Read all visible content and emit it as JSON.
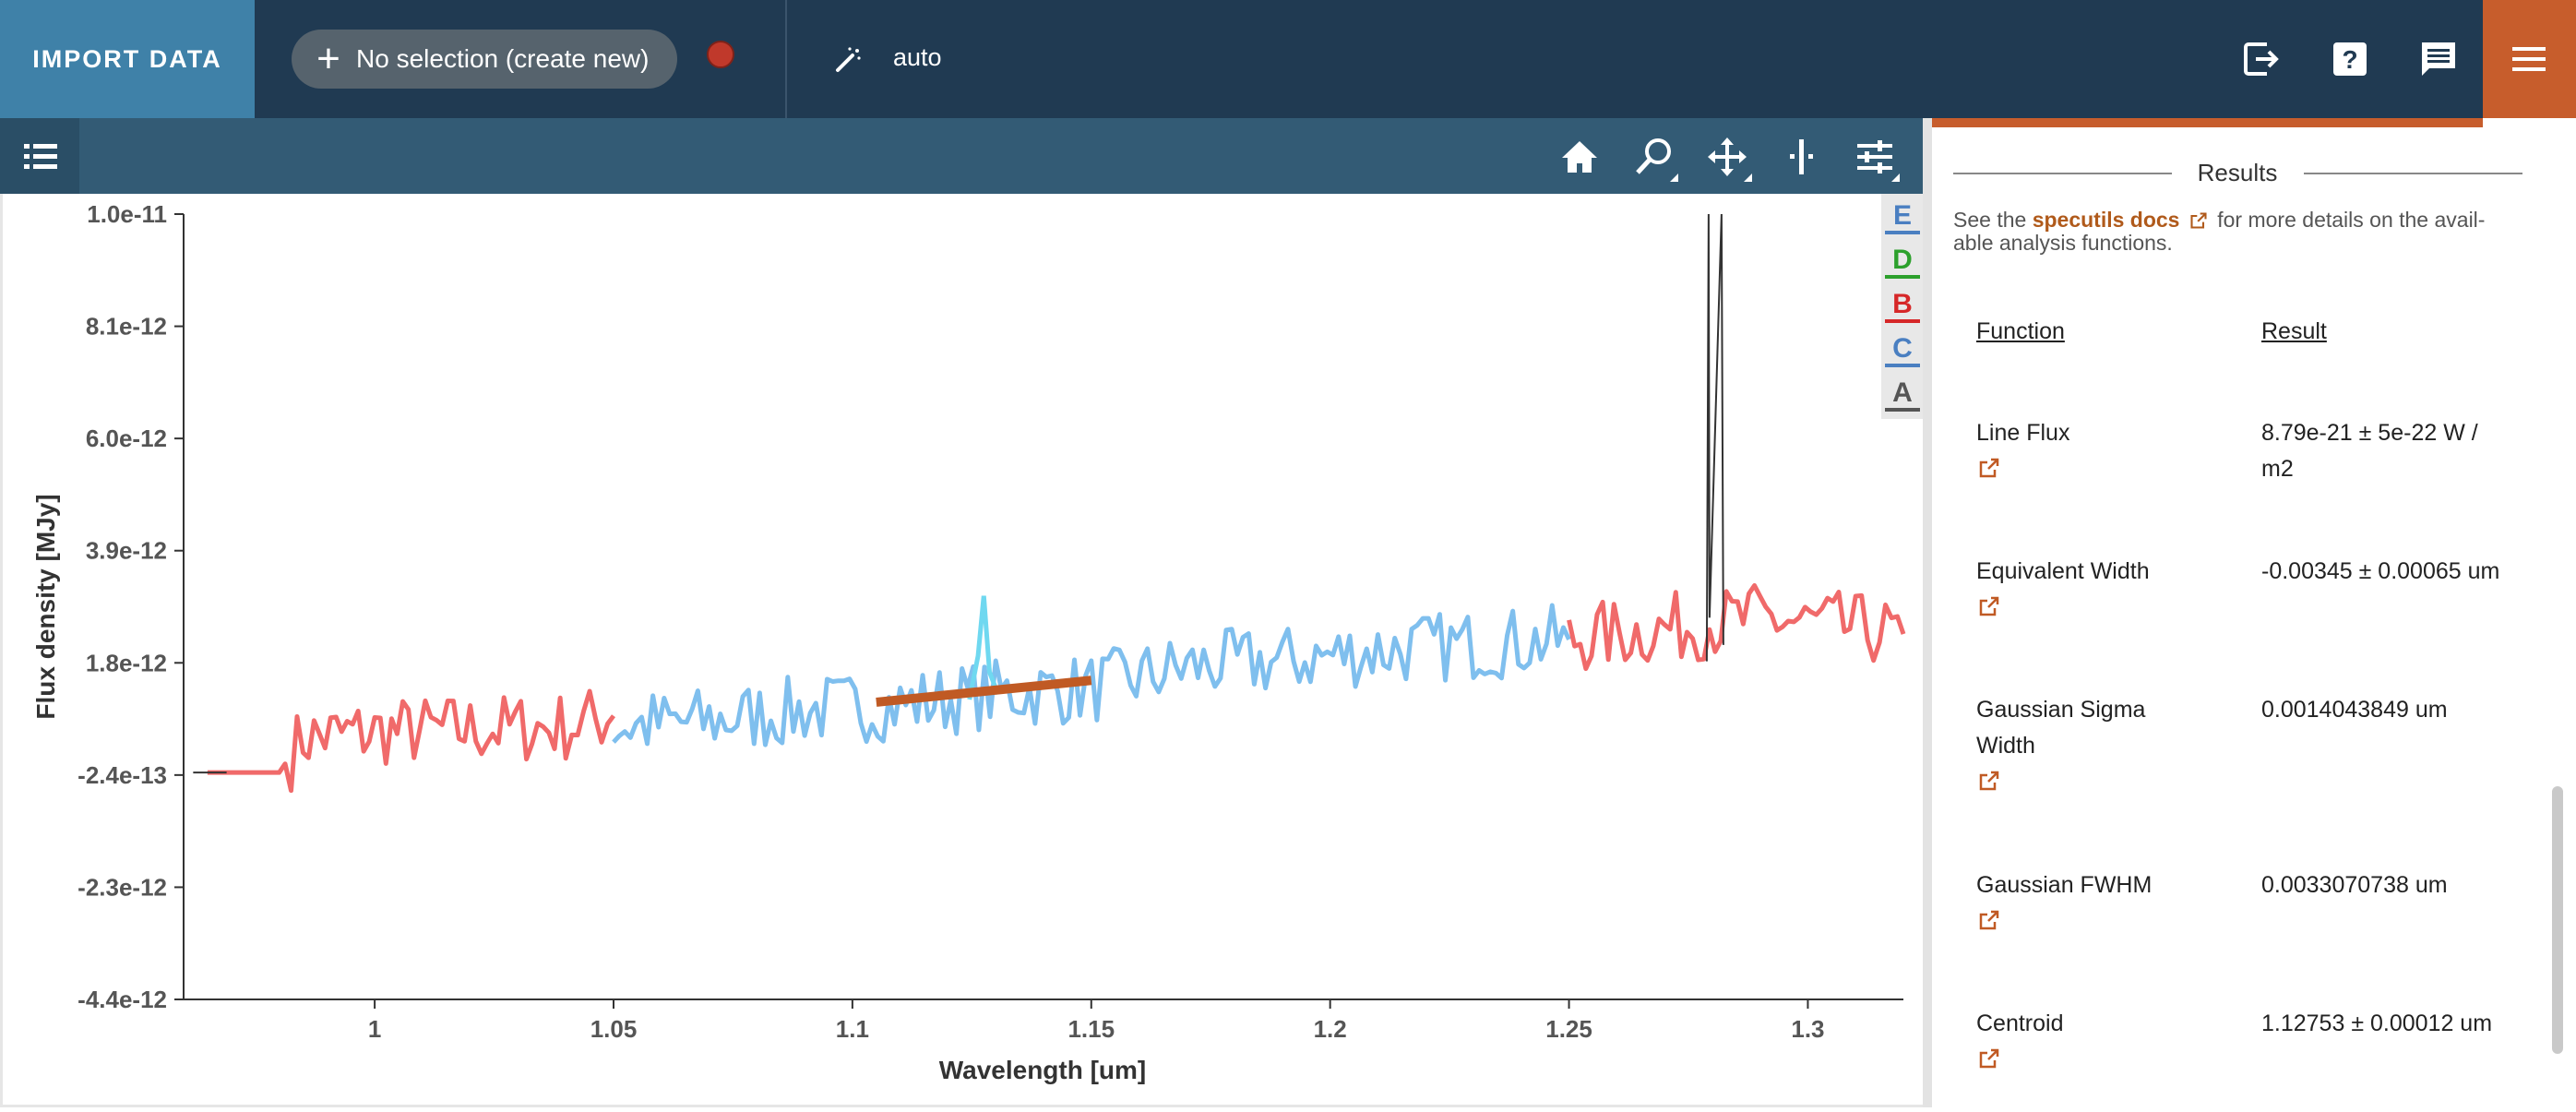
{
  "topbar": {
    "import_label": "IMPORT DATA",
    "subset_label": "No selection (create new)",
    "mode_label": "auto",
    "icons": [
      "export-icon",
      "help-icon",
      "feedback-icon",
      "menu-icon"
    ]
  },
  "viewer": {
    "tools": [
      "home-icon",
      "zoom-icon",
      "pan-icon",
      "slice-icon",
      "settings-icon"
    ],
    "layer_letters": [
      "E",
      "D",
      "B",
      "C",
      "A"
    ],
    "layer_colors": [
      "#4a7fc1",
      "#2ca02c",
      "#d62728",
      "#4a7fc1",
      "#555555"
    ]
  },
  "chart_data": {
    "type": "line",
    "xlabel": "Wavelength [um]",
    "ylabel": "Flux density [MJy]",
    "x_ticks": [
      "1",
      "1.05",
      "1.1",
      "1.15",
      "1.2",
      "1.25",
      "1.3"
    ],
    "y_ticks": [
      "1.0e-11",
      "8.1e-12",
      "6.0e-12",
      "3.9e-12",
      "1.8e-12",
      "-2.4e-13",
      "-2.3e-12",
      "-4.4e-12"
    ],
    "xlim": [
      0.96,
      1.32
    ],
    "ylim": [
      -4.4e-12,
      1e-11
    ],
    "series": [
      {
        "color": "#f06a6a",
        "x": [
          0.965,
          0.98,
          0.985,
          1.0,
          1.02,
          1.04,
          1.05
        ],
        "y": [
          -2.4e-13,
          -2.4e-13,
          4e-13,
          5e-13,
          5.5e-13,
          6e-13,
          8e-13
        ]
      },
      {
        "color": "#7fbfee",
        "x": [
          1.05,
          1.07,
          1.09,
          1.11,
          1.13,
          1.15,
          1.17,
          1.19,
          1.21,
          1.23,
          1.25
        ],
        "y": [
          6e-13,
          7e-13,
          9e-13,
          1e-12,
          1.2e-12,
          1.3e-12,
          1.7e-12,
          1.8e-12,
          2e-12,
          2.1e-12,
          2.2e-12
        ]
      },
      {
        "color": "#f06a6a",
        "x": [
          1.25,
          1.27,
          1.29,
          1.31,
          1.32
        ],
        "y": [
          2.2e-12,
          2.4e-12,
          2.6e-12,
          2.4e-12,
          2.3e-12
        ]
      }
    ],
    "line_fit": {
      "color": "#c05a24",
      "x": [
        1.105,
        1.15
      ],
      "y": [
        1.05e-12,
        1.45e-12
      ]
    },
    "emission_line": {
      "color": "#6fd8f0",
      "x": 1.1275,
      "peak": 3e-12
    }
  },
  "panel": {
    "results_title": "Results",
    "desc_prefix": "See the ",
    "desc_link": "specutils docs",
    "desc_suffix": " for more details on the avail-able analysis functions.",
    "col_function": "Function",
    "col_result": "Result",
    "rows": [
      {
        "function": "Line Flux",
        "result": "8.79e-21 ± 5e-22 W / m2"
      },
      {
        "function": "Equivalent Width",
        "result": "-0.00345 ± 0.00065 um"
      },
      {
        "function": "Gaussian Sigma Width",
        "result": "0.0014043849 um"
      },
      {
        "function": "Gaussian FWHM",
        "result": "0.0033070738 um"
      },
      {
        "function": "Centroid",
        "result": "1.12753 ± 0.00012 um"
      }
    ]
  }
}
